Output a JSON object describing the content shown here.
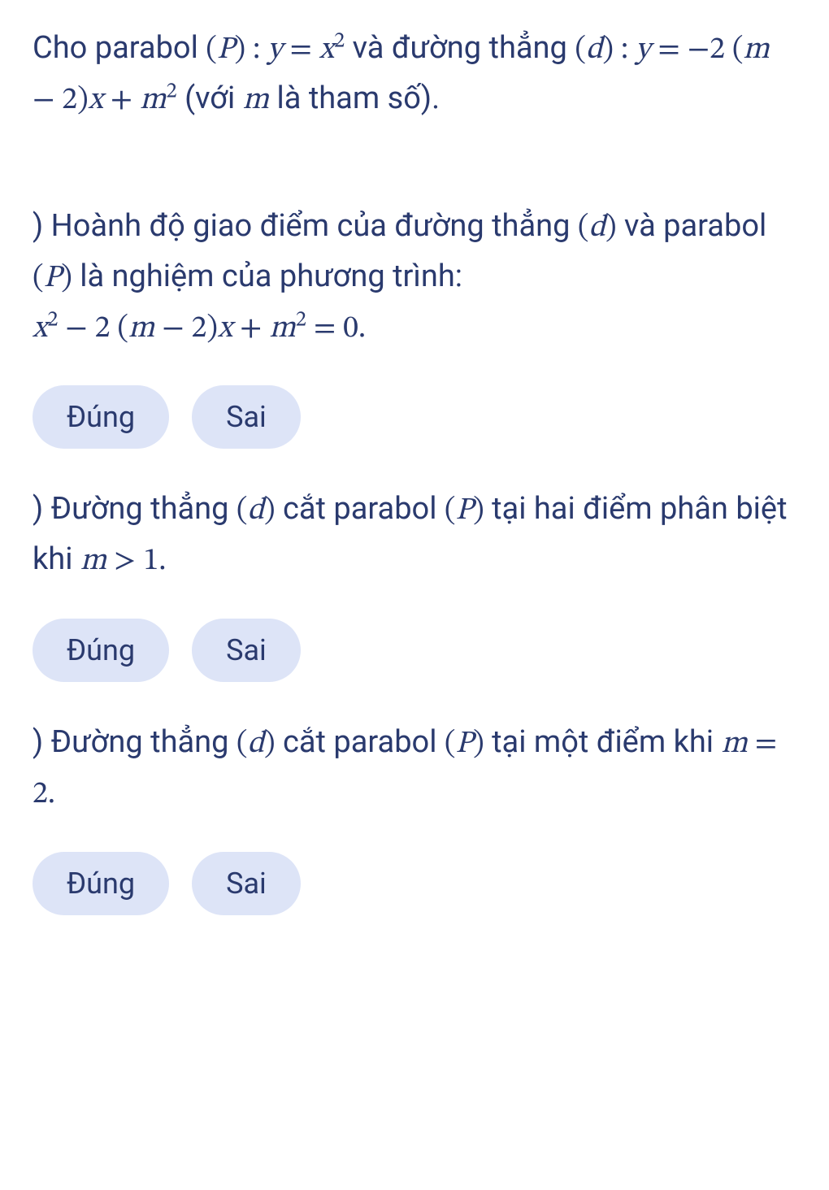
{
  "colors": {
    "text": "#2a3a6e",
    "button_bg": "#dde4f7",
    "background": "#ffffff"
  },
  "typography": {
    "body_fontsize": 38,
    "button_fontsize": 36,
    "line_height": 1.55
  },
  "intro": {
    "text_pre1": "Cho parabol ",
    "expr1_open": "(",
    "expr1_var": "P",
    "expr1_close": ")",
    "expr1_colon": " : ",
    "expr1_y": "y",
    "expr1_eq": " = ",
    "expr1_x": "x",
    "expr1_sup": "2",
    "text_mid1": " và đường thẳng ",
    "expr2_open": "(",
    "expr2_var": "d",
    "expr2_close": ")",
    "expr2_colon": " : ",
    "expr2_y": "y",
    "expr2_eq": " = ",
    "expr2_neg": "−2 (",
    "expr2_m1": "m",
    "expr2_minus": " − 2)",
    "expr2_x": "x",
    "expr2_plus": " + ",
    "expr2_m2": "m",
    "expr2_sup": "2",
    "text_mid2": " (với ",
    "m_param": "m",
    "text_end": " là tham số)."
  },
  "q1": {
    "prefix": ") ",
    "text1": "Hoành độ giao điểm của đường thẳng ",
    "d_open": "(",
    "d_var": "d",
    "d_close": ")",
    "text2": " và parabol ",
    "p_open": "(",
    "p_var": "P",
    "p_close": ")",
    "text3": " là nghiệm của phương trình:",
    "eq_x": "x",
    "eq_sup1": "2",
    "eq_minus1": " − 2 (",
    "eq_m1": "m",
    "eq_minus2": " − 2)",
    "eq_x2": "x",
    "eq_plus": " + ",
    "eq_m2": "m",
    "eq_sup2": "2",
    "eq_eq": " = 0.",
    "btn_true": "Đúng",
    "btn_false": "Sai"
  },
  "q2": {
    "prefix": ") ",
    "text1": "Đường thẳng ",
    "d_open": "(",
    "d_var": "d",
    "d_close": ")",
    "text2": " cắt parabol ",
    "p_open": "(",
    "p_var": "P",
    "p_close": ")",
    "text3": " tại hai điểm phân biệt khi ",
    "m_var": "m",
    "gt": " >  1.",
    "btn_true": "Đúng",
    "btn_false": "Sai"
  },
  "q3": {
    "prefix": ") ",
    "text1": "Đường thẳng ",
    "d_open": "(",
    "d_var": "d",
    "d_close": ")",
    "text2": " cắt parabol ",
    "p_open": "(",
    "p_var": "P",
    "p_close": ")",
    "text3": " tại một điểm khi ",
    "m_var": "m",
    "eq": " = 2.",
    "btn_true": "Đúng",
    "btn_false": "Sai"
  }
}
